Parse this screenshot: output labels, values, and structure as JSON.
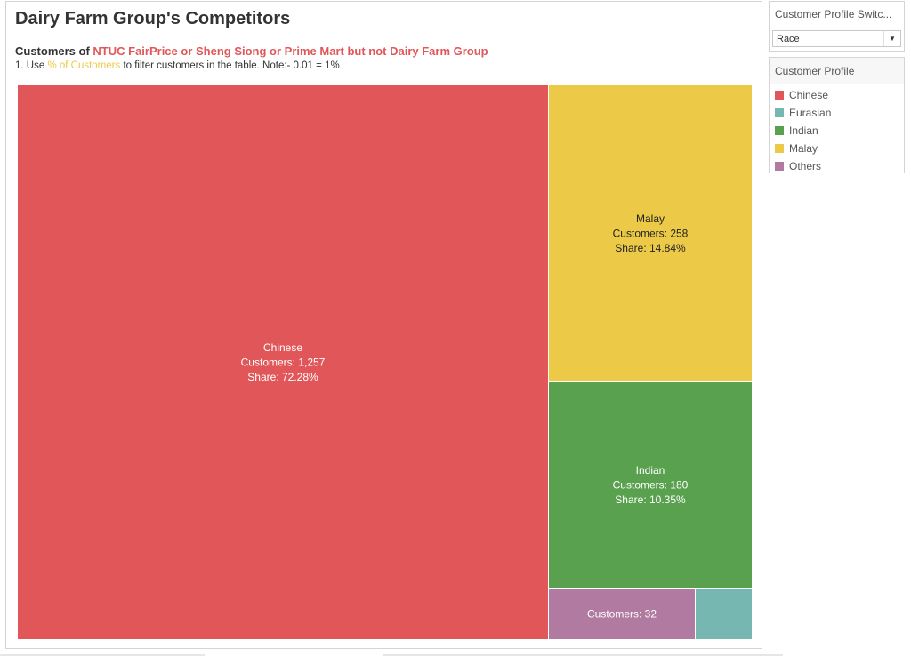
{
  "dashboard": {
    "title": "Dairy Farm Group's Competitors",
    "subtitle_prefix": "Customers of ",
    "subtitle_highlight": "NTUC FairPrice or Sheng Siong or Prime Mart but not Dairy Farm Group",
    "note_prefix": "1. Use ",
    "note_highlight": "% of Customers",
    "note_suffix": " to filter customers in the table. Note:- 0.01 = 1%"
  },
  "switcher": {
    "title": "Customer Profile Switc...",
    "selected": "Race"
  },
  "legend": {
    "title": "Customer Profile",
    "items": [
      {
        "label": "Chinese",
        "color": "#e15759"
      },
      {
        "label": "Eurasian",
        "color": "#76b7b2"
      },
      {
        "label": "Indian",
        "color": "#59a14f"
      },
      {
        "label": "Malay",
        "color": "#edc948"
      },
      {
        "label": "Others",
        "color": "#b07aa1"
      }
    ]
  },
  "chart_data": {
    "type": "treemap",
    "series": [
      {
        "name": "Chinese",
        "customers": 1257,
        "share": 72.28,
        "label": [
          "Chinese",
          "Customers: 1,257",
          "Share: 72.28%"
        ],
        "color": "#e15759",
        "text_color": "#ffffff"
      },
      {
        "name": "Malay",
        "customers": 258,
        "share": 14.84,
        "label": [
          "Malay",
          "Customers: 258",
          "Share: 14.84%"
        ],
        "color": "#edc948",
        "text_color": "#222222"
      },
      {
        "name": "Indian",
        "customers": 180,
        "share": 10.35,
        "label": [
          "Indian",
          "Customers: 180",
          "Share: 10.35%"
        ],
        "color": "#59a14f",
        "text_color": "#ffffff"
      },
      {
        "name": "Others",
        "customers": 32,
        "label": [
          "Customers: 32"
        ],
        "color": "#b07aa1",
        "text_color": "#ffffff"
      },
      {
        "name": "Eurasian",
        "label": [],
        "color": "#76b7b2",
        "text_color": "#ffffff"
      }
    ]
  }
}
